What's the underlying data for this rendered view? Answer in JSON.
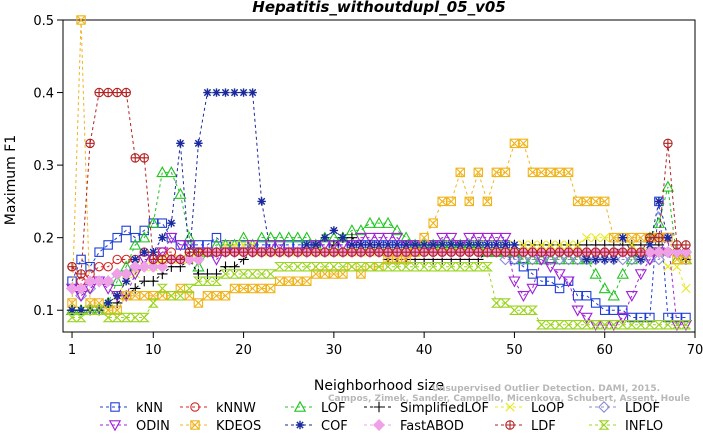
{
  "chart_data": {
    "type": "line",
    "title": "Hepatitis_withoutdupl_05_v05",
    "xlabel": "Neighborhood size",
    "ylabel": "Maximum F1",
    "xlim": [
      0,
      70
    ],
    "ylim": [
      0.07,
      0.5
    ],
    "xticks": [
      1,
      10,
      20,
      30,
      40,
      50,
      60,
      70
    ],
    "yticks": [
      0.1,
      0.2,
      0.3,
      0.4,
      0.5
    ],
    "grid": false,
    "legend_position": "bottom",
    "credit_lines": [
      "Campos, Zimek, Sander, Campello, Micenkova, Schubert, Assent, Houle",
      "Unsupervised Outlier Detection. DAMI, 2015."
    ],
    "x": [
      1,
      2,
      3,
      4,
      5,
      6,
      7,
      8,
      9,
      10,
      11,
      12,
      13,
      14,
      15,
      16,
      17,
      18,
      19,
      20,
      21,
      22,
      23,
      24,
      25,
      26,
      27,
      28,
      29,
      30,
      31,
      32,
      33,
      34,
      35,
      36,
      37,
      38,
      39,
      40,
      41,
      42,
      43,
      44,
      45,
      46,
      47,
      48,
      49,
      50,
      51,
      52,
      53,
      54,
      55,
      56,
      57,
      58,
      59,
      60,
      61,
      62,
      63,
      64,
      65,
      66,
      67,
      68,
      69
    ],
    "series": [
      {
        "name": "kNN",
        "color": "#1f3fd6",
        "marker": "square",
        "values": [
          0.14,
          0.17,
          0.16,
          0.18,
          0.19,
          0.2,
          0.21,
          0.2,
          0.21,
          0.22,
          0.22,
          0.2,
          0.19,
          0.19,
          0.19,
          0.19,
          0.2,
          0.19,
          0.19,
          0.19,
          0.19,
          0.19,
          0.19,
          0.19,
          0.19,
          0.19,
          0.19,
          0.19,
          0.19,
          0.19,
          0.19,
          0.19,
          0.19,
          0.19,
          0.19,
          0.19,
          0.19,
          0.19,
          0.19,
          0.19,
          0.19,
          0.19,
          0.19,
          0.19,
          0.19,
          0.19,
          0.19,
          0.19,
          0.19,
          0.17,
          0.16,
          0.15,
          0.14,
          0.14,
          0.13,
          0.14,
          0.12,
          0.12,
          0.11,
          0.1,
          0.1,
          0.1,
          0.09,
          0.09,
          0.09,
          0.25,
          0.09,
          0.09,
          0.09
        ]
      },
      {
        "name": "kNNW",
        "color": "#d62424",
        "marker": "circle",
        "values": [
          0.16,
          0.14,
          0.15,
          0.16,
          0.16,
          0.17,
          0.17,
          0.17,
          0.18,
          0.17,
          0.18,
          0.18,
          0.17,
          0.18,
          0.18,
          0.18,
          0.18,
          0.18,
          0.18,
          0.18,
          0.18,
          0.18,
          0.18,
          0.18,
          0.18,
          0.18,
          0.18,
          0.18,
          0.18,
          0.18,
          0.18,
          0.18,
          0.18,
          0.18,
          0.18,
          0.18,
          0.18,
          0.18,
          0.18,
          0.18,
          0.18,
          0.18,
          0.18,
          0.18,
          0.18,
          0.18,
          0.18,
          0.18,
          0.18,
          0.18,
          0.18,
          0.18,
          0.18,
          0.18,
          0.18,
          0.18,
          0.18,
          0.18,
          0.18,
          0.18,
          0.18,
          0.18,
          0.18,
          0.18,
          0.18,
          0.18,
          0.18,
          0.18,
          0.18
        ]
      },
      {
        "name": "LOF",
        "color": "#22c422",
        "marker": "triangle",
        "values": [
          0.1,
          0.1,
          0.1,
          0.1,
          0.11,
          0.14,
          0.16,
          0.19,
          0.2,
          0.22,
          0.29,
          0.29,
          0.26,
          0.2,
          0.16,
          0.18,
          0.19,
          0.19,
          0.19,
          0.2,
          0.19,
          0.2,
          0.2,
          0.2,
          0.2,
          0.2,
          0.2,
          0.19,
          0.2,
          0.2,
          0.2,
          0.21,
          0.21,
          0.22,
          0.22,
          0.22,
          0.21,
          0.2,
          0.19,
          0.19,
          0.19,
          0.19,
          0.19,
          0.19,
          0.19,
          0.19,
          0.18,
          0.18,
          0.18,
          0.18,
          0.17,
          0.17,
          0.17,
          0.17,
          0.17,
          0.17,
          0.17,
          0.17,
          0.15,
          0.13,
          0.12,
          0.15,
          0.17,
          0.18,
          0.2,
          0.22,
          0.27,
          0.17,
          0.17
        ]
      },
      {
        "name": "SimplifiedLOF",
        "color": "#000000",
        "marker": "plus",
        "values": [
          0.1,
          0.1,
          0.1,
          0.1,
          0.11,
          0.11,
          0.12,
          0.13,
          0.14,
          0.14,
          0.15,
          0.16,
          0.16,
          0.17,
          0.15,
          0.15,
          0.15,
          0.16,
          0.16,
          0.17,
          0.18,
          0.18,
          0.18,
          0.18,
          0.18,
          0.18,
          0.18,
          0.18,
          0.18,
          0.19,
          0.2,
          0.2,
          0.19,
          0.19,
          0.18,
          0.17,
          0.17,
          0.17,
          0.17,
          0.17,
          0.17,
          0.17,
          0.17,
          0.17,
          0.17,
          0.17,
          0.18,
          0.18,
          0.19,
          0.19,
          0.19,
          0.19,
          0.19,
          0.19,
          0.19,
          0.19,
          0.19,
          0.19,
          0.19,
          0.19,
          0.19,
          0.19,
          0.19,
          0.19,
          0.19,
          0.19,
          0.18,
          0.18,
          0.17
        ]
      },
      {
        "name": "LoOP",
        "color": "#e8e81a",
        "marker": "x",
        "values": [
          0.1,
          0.1,
          0.1,
          0.1,
          0.1,
          0.12,
          0.14,
          0.15,
          0.16,
          0.16,
          0.17,
          0.17,
          0.17,
          0.17,
          0.18,
          0.18,
          0.18,
          0.19,
          0.19,
          0.19,
          0.19,
          0.18,
          0.18,
          0.18,
          0.18,
          0.18,
          0.18,
          0.18,
          0.18,
          0.18,
          0.18,
          0.18,
          0.18,
          0.18,
          0.18,
          0.18,
          0.18,
          0.18,
          0.18,
          0.18,
          0.19,
          0.19,
          0.19,
          0.19,
          0.19,
          0.19,
          0.19,
          0.19,
          0.19,
          0.19,
          0.19,
          0.19,
          0.19,
          0.19,
          0.19,
          0.19,
          0.19,
          0.2,
          0.2,
          0.2,
          0.2,
          0.2,
          0.19,
          0.18,
          0.18,
          0.18,
          0.16,
          0.16,
          0.13
        ]
      },
      {
        "name": "LDOF",
        "color": "#8c8cd6",
        "marker": "diamond",
        "values": [
          0.13,
          0.12,
          0.13,
          0.14,
          0.14,
          0.15,
          0.15,
          0.16,
          0.16,
          0.16,
          0.16,
          0.17,
          0.17,
          0.17,
          0.17,
          0.18,
          0.18,
          0.18,
          0.18,
          0.18,
          0.18,
          0.18,
          0.18,
          0.18,
          0.18,
          0.18,
          0.18,
          0.18,
          0.18,
          0.18,
          0.18,
          0.18,
          0.18,
          0.18,
          0.18,
          0.18,
          0.18,
          0.18,
          0.18,
          0.18,
          0.18,
          0.18,
          0.18,
          0.18,
          0.18,
          0.18,
          0.18,
          0.18,
          0.17,
          0.17,
          0.17,
          0.17,
          0.17,
          0.17,
          0.17,
          0.17,
          0.17,
          0.17,
          0.17,
          0.17,
          0.17,
          0.17,
          0.17,
          0.17,
          0.17,
          0.17,
          0.18,
          0.18,
          0.18
        ]
      },
      {
        "name": "ODIN",
        "color": "#a020d6",
        "marker": "triangle-down",
        "values": [
          0.13,
          0.12,
          0.13,
          0.14,
          0.13,
          0.12,
          0.12,
          0.15,
          0.17,
          0.17,
          0.18,
          0.2,
          0.19,
          0.19,
          0.18,
          0.18,
          0.17,
          0.18,
          0.18,
          0.18,
          0.19,
          0.18,
          0.19,
          0.19,
          0.18,
          0.18,
          0.18,
          0.19,
          0.19,
          0.19,
          0.19,
          0.19,
          0.2,
          0.2,
          0.2,
          0.2,
          0.2,
          0.19,
          0.19,
          0.18,
          0.19,
          0.2,
          0.2,
          0.19,
          0.2,
          0.2,
          0.2,
          0.2,
          0.2,
          0.14,
          0.12,
          0.13,
          0.17,
          0.16,
          0.15,
          0.14,
          0.1,
          0.09,
          0.08,
          0.08,
          0.08,
          0.09,
          0.12,
          0.15,
          0.17,
          0.18,
          0.2,
          0.08,
          0.08
        ]
      },
      {
        "name": "KDEOS",
        "color": "#f0b41e",
        "marker": "square-x",
        "values": [
          0.11,
          0.5,
          0.11,
          0.11,
          0.1,
          0.1,
          0.12,
          0.12,
          0.12,
          0.12,
          0.12,
          0.12,
          0.13,
          0.12,
          0.11,
          0.12,
          0.12,
          0.12,
          0.13,
          0.13,
          0.13,
          0.13,
          0.13,
          0.14,
          0.14,
          0.14,
          0.14,
          0.15,
          0.15,
          0.15,
          0.15,
          0.16,
          0.15,
          0.16,
          0.16,
          0.17,
          0.17,
          0.17,
          0.18,
          0.2,
          0.22,
          0.25,
          0.25,
          0.29,
          0.25,
          0.29,
          0.25,
          0.29,
          0.29,
          0.33,
          0.33,
          0.29,
          0.29,
          0.29,
          0.29,
          0.29,
          0.25,
          0.25,
          0.25,
          0.25,
          0.2,
          0.2,
          0.2,
          0.2,
          0.2,
          0.2,
          0.2,
          0.17,
          0.17
        ]
      },
      {
        "name": "COF",
        "color": "#1a2a9e",
        "marker": "asterisk",
        "values": [
          0.1,
          0.1,
          0.1,
          0.1,
          0.11,
          0.12,
          0.14,
          0.17,
          0.18,
          0.18,
          0.2,
          0.22,
          0.33,
          0.17,
          0.33,
          0.4,
          0.4,
          0.4,
          0.4,
          0.4,
          0.4,
          0.25,
          0.18,
          0.18,
          0.18,
          0.18,
          0.19,
          0.19,
          0.2,
          0.21,
          0.2,
          0.19,
          0.19,
          0.19,
          0.19,
          0.19,
          0.19,
          0.19,
          0.19,
          0.19,
          0.19,
          0.19,
          0.19,
          0.19,
          0.19,
          0.19,
          0.19,
          0.19,
          0.19,
          0.19,
          0.18,
          0.18,
          0.18,
          0.18,
          0.18,
          0.18,
          0.18,
          0.17,
          0.17,
          0.17,
          0.17,
          0.2,
          0.18,
          0.17,
          0.19,
          0.25,
          0.2,
          0.18,
          0.18
        ]
      },
      {
        "name": "FastABOD",
        "color": "#f0a0e6",
        "marker": "diamond-filled",
        "values": [
          0.13,
          0.13,
          0.14,
          0.14,
          0.14,
          0.15,
          0.15,
          0.16,
          0.16,
          0.16,
          0.16,
          0.17,
          0.17,
          0.17,
          0.17,
          0.18,
          0.18,
          0.18,
          0.18,
          0.18,
          0.18,
          0.18,
          0.18,
          0.18,
          0.18,
          0.18,
          0.18,
          0.18,
          0.18,
          0.18,
          0.18,
          0.18,
          0.18,
          0.18,
          0.18,
          0.18,
          0.18,
          0.18,
          0.18,
          0.18,
          0.18,
          0.18,
          0.18,
          0.18,
          0.18,
          0.18,
          0.18,
          0.18,
          0.18,
          0.18,
          0.18,
          0.18,
          0.18,
          0.18,
          0.18,
          0.18,
          0.18,
          0.18,
          0.18,
          0.18,
          0.18,
          0.18,
          0.18,
          0.18,
          0.18,
          0.18,
          0.18,
          0.18,
          0.18
        ]
      },
      {
        "name": "LDF",
        "color": "#b22222",
        "marker": "circle-plus",
        "values": [
          0.16,
          0.15,
          0.33,
          0.4,
          0.4,
          0.4,
          0.4,
          0.31,
          0.31,
          0.17,
          0.17,
          0.17,
          0.17,
          0.18,
          0.18,
          0.18,
          0.18,
          0.18,
          0.18,
          0.18,
          0.18,
          0.18,
          0.18,
          0.18,
          0.18,
          0.18,
          0.18,
          0.18,
          0.18,
          0.18,
          0.18,
          0.18,
          0.18,
          0.18,
          0.18,
          0.18,
          0.18,
          0.18,
          0.18,
          0.18,
          0.18,
          0.18,
          0.18,
          0.18,
          0.18,
          0.18,
          0.18,
          0.18,
          0.18,
          0.18,
          0.18,
          0.18,
          0.18,
          0.18,
          0.18,
          0.18,
          0.18,
          0.18,
          0.18,
          0.18,
          0.18,
          0.18,
          0.18,
          0.18,
          0.2,
          0.2,
          0.33,
          0.19,
          0.19
        ]
      },
      {
        "name": "INFLO",
        "color": "#9ad41e",
        "marker": "hourglass",
        "values": [
          0.09,
          0.09,
          0.1,
          0.1,
          0.09,
          0.09,
          0.09,
          0.09,
          0.09,
          0.11,
          0.13,
          0.12,
          0.12,
          0.13,
          0.14,
          0.14,
          0.14,
          0.15,
          0.15,
          0.15,
          0.15,
          0.15,
          0.15,
          0.16,
          0.16,
          0.16,
          0.16,
          0.16,
          0.16,
          0.16,
          0.16,
          0.16,
          0.16,
          0.16,
          0.16,
          0.16,
          0.16,
          0.16,
          0.16,
          0.16,
          0.16,
          0.16,
          0.16,
          0.16,
          0.16,
          0.16,
          0.16,
          0.11,
          0.11,
          0.1,
          0.1,
          0.1,
          0.08,
          0.08,
          0.08,
          0.08,
          0.08,
          0.08,
          0.08,
          0.08,
          0.08,
          0.08,
          0.08,
          0.08,
          0.08,
          0.08,
          0.08,
          0.08,
          0.08
        ]
      }
    ]
  }
}
